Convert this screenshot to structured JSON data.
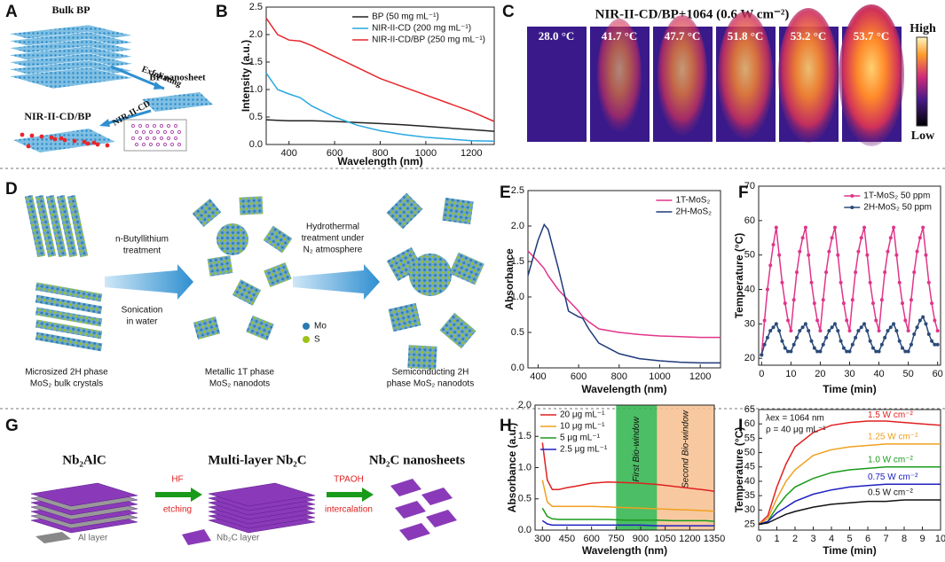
{
  "panel_labels": [
    "A",
    "B",
    "C",
    "D",
    "E",
    "F",
    "G",
    "H",
    "I"
  ],
  "diagram_a": {
    "bulk": "Bulk  BP",
    "step1": "Exfoliating",
    "nanosheet": "BP nanosheet",
    "step2": "NIR-II-CD",
    "product": "NIR-II-CD/BP"
  },
  "panel_c": {
    "title": "NIR-II-CD/BP+1064 (0.6 W cm⁻²)",
    "temperatures": [
      "28.0 °C",
      "41.7 °C",
      "47.7 °C",
      "51.8 °C",
      "53.2 °C",
      "53.7 °C"
    ],
    "scale_high": "High",
    "scale_low": "Low"
  },
  "diagram_d": {
    "step1": [
      "n-Butyllithium",
      "treatment"
    ],
    "step1b": [
      "Sonication",
      "in water"
    ],
    "step2": [
      "Hydrothermal",
      "treatment under",
      "N₂ atmosphere"
    ],
    "legend": [
      "Mo",
      "S"
    ],
    "captions": [
      [
        "Microsized 2H phase",
        "MoS₂ bulk crystals"
      ],
      [
        "Metallic 1T phase",
        "MoS₂ nanodots"
      ],
      [
        "Semiconducting 2H",
        "phase MoS₂ nanodots"
      ]
    ]
  },
  "diagram_g": {
    "start": "Nb₂AlC",
    "middle": "Multi-layer Nb₂C",
    "end": "Nb₂C nanosheets",
    "step1": [
      "HF",
      "etching"
    ],
    "step2": [
      "TPAOH",
      "intercalation"
    ],
    "legend": [
      "Al layer",
      "Nb₂C layer"
    ]
  },
  "chart_data": [
    {
      "type": "line",
      "x_label": "Wavelength (nm)",
      "y_label": "Intensity (a.u.)",
      "x": [
        300,
        350,
        400,
        450,
        500,
        600,
        700,
        800,
        900,
        1000,
        1100,
        1200,
        1300
      ],
      "series": [
        {
          "name": "BP (50 mg mL⁻¹)",
          "color": "#222222",
          "values": [
            0.45,
            0.44,
            0.43,
            0.43,
            0.43,
            0.42,
            0.4,
            0.38,
            0.36,
            0.33,
            0.3,
            0.27,
            0.24
          ]
        },
        {
          "name": "NIR-II-CD (200 mg mL⁻¹)",
          "color": "#29a8e0",
          "values": [
            1.3,
            1.0,
            0.92,
            0.85,
            0.7,
            0.5,
            0.35,
            0.25,
            0.18,
            0.13,
            0.1,
            0.07,
            0.06
          ]
        },
        {
          "name": "NIR-II-CD/BP (250 mg mL⁻¹)",
          "color": "#e8262b",
          "values": [
            2.3,
            2.0,
            1.9,
            1.88,
            1.8,
            1.6,
            1.4,
            1.2,
            1.05,
            0.9,
            0.75,
            0.6,
            0.42
          ]
        }
      ],
      "xlim": [
        300,
        1300
      ],
      "ylim": [
        0,
        2.5
      ],
      "xticks": [
        400,
        600,
        800,
        1000,
        1200
      ],
      "yticks": [
        {
          "value": 0,
          "label": "0.0"
        },
        0.5,
        {
          "value": 1,
          "label": "1.0"
        },
        1.5,
        {
          "value": 2,
          "label": "2.0"
        },
        2.5
      ],
      "legend": "top-right"
    },
    {
      "type": "line",
      "x_label": "Wavelength  (nm)",
      "y_label": "Absorbance",
      "x": [
        350,
        400,
        430,
        450,
        500,
        550,
        600,
        620,
        650,
        700,
        800,
        900,
        1000,
        1100,
        1200,
        1300
      ],
      "series": [
        {
          "name": "1T-MoS₂",
          "color": "#e0358a",
          "values": [
            1.65,
            1.5,
            1.4,
            1.3,
            1.1,
            0.95,
            0.8,
            0.72,
            0.65,
            0.55,
            0.5,
            0.47,
            0.45,
            0.44,
            0.43,
            0.43
          ]
        },
        {
          "name": "2H-MoS₂",
          "color": "#1f3a7a",
          "values": [
            1.3,
            1.8,
            2.02,
            1.95,
            1.4,
            0.8,
            0.72,
            0.7,
            0.55,
            0.35,
            0.2,
            0.13,
            0.1,
            0.08,
            0.07,
            0.07
          ]
        }
      ],
      "xlim": [
        350,
        1300
      ],
      "ylim": [
        0,
        2.5
      ],
      "xticks": [
        400,
        600,
        800,
        1000,
        1200
      ],
      "yticks": [
        {
          "value": 0,
          "label": "0.0"
        },
        0.5,
        {
          "value": 1,
          "label": "1.0"
        },
        1.5,
        {
          "value": 2,
          "label": "2.0"
        },
        2.5
      ],
      "legend": "top-right"
    },
    {
      "type": "line",
      "x_label": "Time (min)",
      "y_label": "Temperature (°C)",
      "markers": true,
      "x": [
        0,
        1,
        2,
        3,
        4,
        5,
        6,
        7,
        8,
        9,
        10,
        11,
        12,
        13,
        14,
        15,
        16,
        17,
        18,
        19,
        20,
        21,
        22,
        23,
        24,
        25,
        26,
        27,
        28,
        29,
        30,
        31,
        32,
        33,
        34,
        35,
        36,
        37,
        38,
        39,
        40,
        41,
        42,
        43,
        44,
        45,
        46,
        47,
        48,
        49,
        50,
        51,
        52,
        53,
        54,
        55,
        56,
        57,
        58,
        59,
        60
      ],
      "series": [
        {
          "name": "1T-MoS₂ 50 ppm",
          "color": "#e0358a",
          "values": [
            21,
            31,
            40,
            47,
            53,
            58,
            50,
            42,
            36,
            31,
            28,
            37,
            45,
            51,
            55,
            58,
            50,
            42,
            36,
            31,
            28,
            37,
            45,
            51,
            55,
            58,
            50,
            42,
            36,
            31,
            28,
            37,
            45,
            51,
            55,
            58,
            50,
            42,
            36,
            31,
            28,
            37,
            45,
            51,
            55,
            58,
            50,
            42,
            36,
            31,
            28,
            37,
            45,
            51,
            55,
            58,
            50,
            42,
            36,
            31,
            28
          ]
        },
        {
          "name": "2H-MoS₂ 50 ppm",
          "color": "#2b4a7a",
          "values": [
            21,
            24,
            26,
            28,
            29,
            30,
            28,
            25,
            23,
            22,
            22,
            24,
            26,
            28,
            29,
            30,
            28,
            25,
            23,
            22,
            22,
            24,
            26,
            28,
            29,
            30,
            28,
            25,
            23,
            22,
            22,
            24,
            26,
            28,
            29,
            30,
            28,
            25,
            23,
            22,
            22,
            24,
            26,
            28,
            29,
            30,
            28,
            25,
            23,
            22,
            22,
            24,
            27,
            29,
            31,
            32,
            30,
            27,
            25,
            24,
            24
          ]
        }
      ],
      "xlim": [
        -1,
        61
      ],
      "ylim": [
        18,
        70
      ],
      "xticks": [
        0,
        10,
        20,
        30,
        40,
        50,
        60
      ],
      "yticks": [
        20,
        30,
        40,
        50,
        60,
        70
      ],
      "legend": "top-right"
    },
    {
      "type": "line",
      "x_label": "Wavelength (nm)",
      "y_label": "Absorbance (a.u.)",
      "x": [
        300,
        330,
        360,
        400,
        450,
        500,
        600,
        700,
        800,
        900,
        1000,
        1100,
        1200,
        1300,
        1350
      ],
      "series": [
        {
          "name": "20 μg mL⁻¹",
          "color": "#e02020",
          "values": [
            1.4,
            0.8,
            0.65,
            0.65,
            0.68,
            0.7,
            0.75,
            0.77,
            0.76,
            0.75,
            0.73,
            0.7,
            0.67,
            0.64,
            0.62
          ]
        },
        {
          "name": "10 μg mL⁻¹",
          "color": "#f0a020",
          "values": [
            0.8,
            0.45,
            0.38,
            0.38,
            0.38,
            0.38,
            0.38,
            0.37,
            0.36,
            0.35,
            0.34,
            0.33,
            0.32,
            0.31,
            0.3
          ]
        },
        {
          "name": "5 μg mL⁻¹",
          "color": "#1a9a1a",
          "values": [
            0.35,
            0.22,
            0.18,
            0.17,
            0.17,
            0.17,
            0.17,
            0.17,
            0.16,
            0.16,
            0.16,
            0.15,
            0.15,
            0.15,
            0.14
          ]
        },
        {
          "name": "2.5 μg mL⁻¹",
          "color": "#2020c0",
          "values": [
            0.15,
            0.1,
            0.08,
            0.08,
            0.08,
            0.08,
            0.08,
            0.08,
            0.08,
            0.08,
            0.07,
            0.07,
            0.07,
            0.07,
            0.07
          ]
        }
      ],
      "regions": [
        {
          "label": "First Bio-window",
          "range": [
            750,
            1000
          ],
          "color": "#2db34a"
        },
        {
          "label": "Second Bio-window",
          "range": [
            1000,
            1350
          ],
          "color": "#f7c08f"
        }
      ],
      "xlim": [
        255,
        1350
      ],
      "ylim": [
        0,
        2
      ],
      "xticks": [
        300,
        450,
        600,
        750,
        900,
        1050,
        1200,
        1350
      ],
      "yticks": [
        {
          "value": 0,
          "label": "0.0"
        },
        0.5,
        {
          "value": 1,
          "label": "1.0"
        },
        1.5,
        {
          "value": 2,
          "label": "2.0"
        }
      ],
      "legend": "top-left"
    },
    {
      "type": "line",
      "x_label": "Time (min)",
      "y_label": "Temperature (°C)",
      "annotations": [
        "λex = 1064 nm",
        "ρ = 40 μg mL⁻¹"
      ],
      "x": [
        0,
        0.5,
        1,
        1.5,
        2,
        3,
        4,
        5,
        6,
        7,
        8,
        9,
        10
      ],
      "series": [
        {
          "name": "1.5 W cm⁻²",
          "color": "#e02020",
          "values": [
            25,
            28,
            38,
            46,
            52,
            57,
            59.5,
            60.5,
            61,
            61,
            60.5,
            60,
            59.5
          ]
        },
        {
          "name": "1.25 W cm⁻²",
          "color": "#f0a020",
          "values": [
            25,
            27,
            34,
            40,
            44,
            49,
            51,
            52,
            52.5,
            53,
            53,
            53,
            53
          ]
        },
        {
          "name": "1.0 W cm⁻²",
          "color": "#1a9a1a",
          "values": [
            25,
            26,
            31,
            35,
            38,
            41,
            43,
            44,
            44.5,
            45,
            45,
            45,
            45
          ]
        },
        {
          "name": "0.75 W cm⁻²",
          "color": "#2020c0",
          "values": [
            25,
            26,
            29,
            31,
            33,
            35.5,
            37,
            38,
            38.5,
            39,
            39,
            39,
            39
          ]
        },
        {
          "name": "0.5 W cm⁻²",
          "color": "#111111",
          "values": [
            25,
            25.5,
            27,
            28.5,
            29.5,
            31,
            32,
            32.5,
            33,
            33,
            33.5,
            33.5,
            33.5
          ]
        }
      ],
      "xlim": [
        0,
        10
      ],
      "ylim": [
        23,
        65
      ],
      "xticks": [
        0,
        1,
        2,
        3,
        4,
        5,
        6,
        7,
        8,
        9,
        10
      ],
      "yticks": [
        25,
        30,
        35,
        40,
        45,
        50,
        55,
        60,
        65
      ],
      "legend": "inline"
    }
  ]
}
